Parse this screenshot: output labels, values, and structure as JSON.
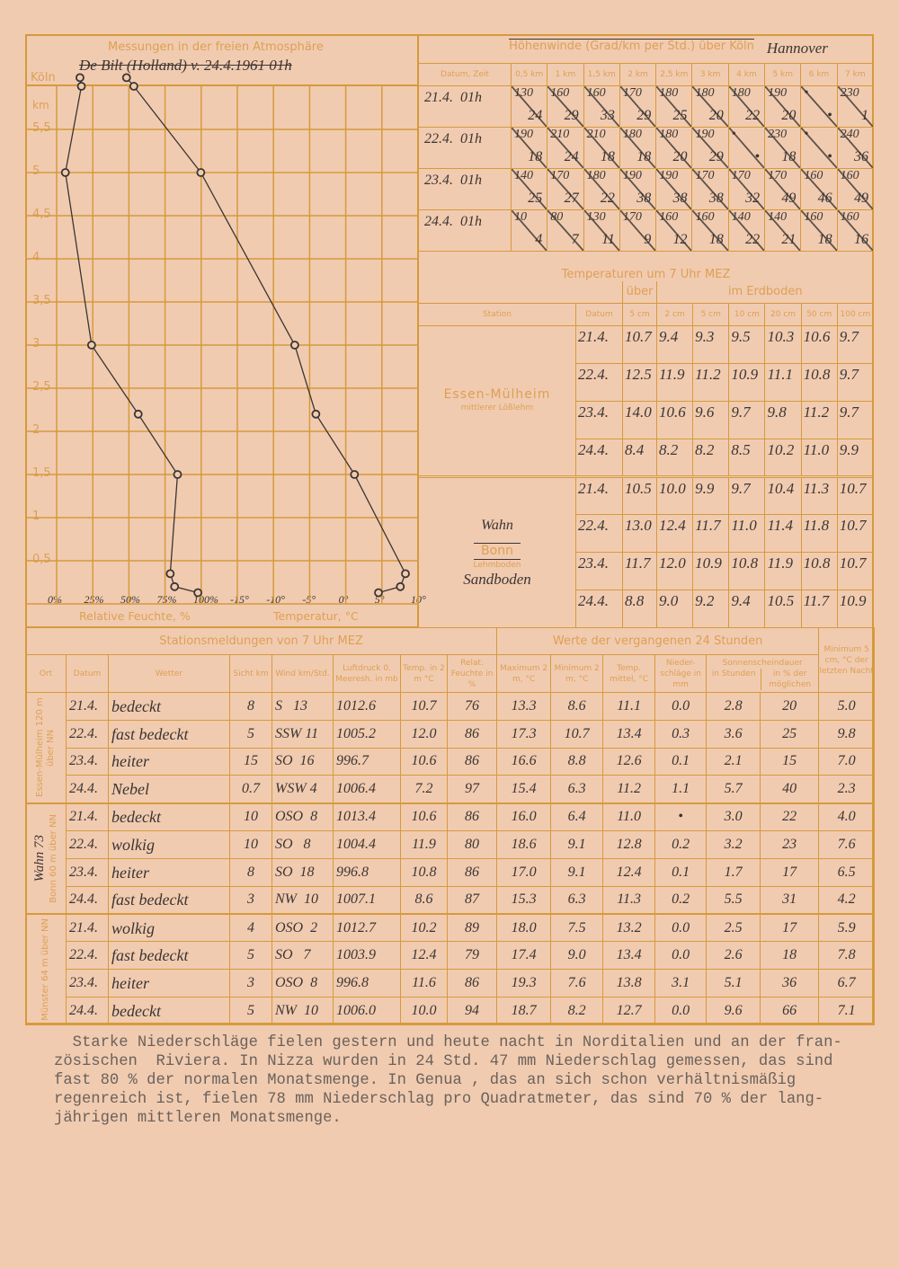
{
  "chart_data": {
    "type": "line",
    "title": "Messungen in der freien Atmosphäre",
    "note": "De Bilt (Holland) v. 24.4.1961   01h",
    "location_label": "Köln",
    "y_unit": "km",
    "yticks": [
      "5,5",
      "5",
      "4,5",
      "4",
      "3,5",
      "3",
      "2,5",
      "2",
      "1,5",
      "1",
      "0,5"
    ],
    "humidity_ticks": [
      "0%",
      "25%",
      "50%",
      "75%",
      "100%"
    ],
    "temp_ticks": [
      "-15°",
      "-10°",
      "-5°",
      "0°",
      "5°",
      "10°"
    ],
    "xlabel_humidity": "Relative Feuchte, %",
    "xlabel_temp": "Temperatur, °C",
    "ylim": [
      0,
      5.75
    ],
    "humidity_xlim": [
      0,
      100
    ],
    "temp_xlim": [
      -15,
      10
    ],
    "grid": true,
    "series": [
      {
        "name": "Relative Feuchte, %",
        "points": [
          [
            16,
            6.1
          ],
          [
            17,
            6.0
          ],
          [
            6,
            5.0
          ],
          [
            24,
            3.0
          ],
          [
            56,
            2.2
          ],
          [
            83,
            1.5
          ],
          [
            78,
            0.35
          ],
          [
            81,
            0.2
          ],
          [
            97,
            0.13
          ]
        ]
      },
      {
        "name": "Temperatur, °C",
        "points": [
          [
            -30.4,
            6.1
          ],
          [
            -29.4,
            6.0
          ],
          [
            -20.2,
            5.0
          ],
          [
            -7.3,
            3.0
          ],
          [
            -4.4,
            2.2
          ],
          [
            0.9,
            1.5
          ],
          [
            7.9,
            0.35
          ],
          [
            7.2,
            0.2
          ],
          [
            4.2,
            0.13
          ]
        ]
      }
    ]
  },
  "winds": {
    "title": "Höhenwinde (Grad/km per Std.) über Köln",
    "handwritten_station": "Hannover",
    "date_header": "Datum, Zeit",
    "levels": [
      "0,5 km",
      "1 km",
      "1,5 km",
      "2 km",
      "2,5 km",
      "3 km",
      "4 km",
      "5 km",
      "6 km",
      "7 km"
    ],
    "rows": [
      {
        "date": "21.4.  01h",
        "cells": [
          [
            "130",
            "24"
          ],
          [
            "160",
            "29"
          ],
          [
            "160",
            "33"
          ],
          [
            "170",
            "29"
          ],
          [
            "180",
            "25"
          ],
          [
            "180",
            "20"
          ],
          [
            "180",
            "22"
          ],
          [
            "190",
            "20"
          ],
          [
            "•",
            "•"
          ],
          [
            "230",
            "1"
          ]
        ]
      },
      {
        "date": "22.4.  01h",
        "cells": [
          [
            "190",
            "18"
          ],
          [
            "210",
            "24"
          ],
          [
            "210",
            "18"
          ],
          [
            "180",
            "18"
          ],
          [
            "180",
            "20"
          ],
          [
            "190",
            "29"
          ],
          [
            "•",
            "•"
          ],
          [
            "230",
            "18"
          ],
          [
            "•",
            "•"
          ],
          [
            "240",
            "36"
          ]
        ]
      },
      {
        "date": "23.4.  01h",
        "cells": [
          [
            "140",
            "25"
          ],
          [
            "170",
            "27"
          ],
          [
            "180",
            "22"
          ],
          [
            "190",
            "38"
          ],
          [
            "190",
            "38"
          ],
          [
            "170",
            "38"
          ],
          [
            "170",
            "32"
          ],
          [
            "170",
            "49"
          ],
          [
            "160",
            "46"
          ],
          [
            "160",
            "49"
          ]
        ]
      },
      {
        "date": "24.4.  01h",
        "cells": [
          [
            "10",
            "4"
          ],
          [
            "80",
            "7"
          ],
          [
            "130",
            "11"
          ],
          [
            "170",
            "9"
          ],
          [
            "160",
            "12"
          ],
          [
            "160",
            "18"
          ],
          [
            "140",
            "22"
          ],
          [
            "140",
            "21"
          ],
          [
            "160",
            "18"
          ],
          [
            "160",
            "16"
          ]
        ]
      }
    ]
  },
  "soil": {
    "title": "Temperaturen um 7 Uhr MEZ",
    "over": "über",
    "in_ground": "im Erdboden",
    "headers": [
      "Station",
      "Datum",
      "5 cm",
      "2 cm",
      "5 cm",
      "10 cm",
      "20 cm",
      "50 cm",
      "100 cm"
    ],
    "stations": [
      {
        "name": "Essen-Mülheim",
        "soil": "mittlerer Lößlehm",
        "rows": [
          [
            "21.4.",
            "10.7",
            "9.4",
            "9.3",
            "9.5",
            "10.3",
            "10.6",
            "9.7"
          ],
          [
            "22.4.",
            "12.5",
            "11.9",
            "11.2",
            "10.9",
            "11.1",
            "10.8",
            "9.7"
          ],
          [
            "23.4.",
            "14.0",
            "10.6",
            "9.6",
            "9.7",
            "9.8",
            "11.2",
            "9.7"
          ],
          [
            "24.4.",
            "8.4",
            "8.2",
            "8.2",
            "8.5",
            "10.2",
            "11.0",
            "9.9"
          ]
        ]
      },
      {
        "name_handwritten": "Wahn",
        "name": "Bonn",
        "soil": "Lehmboden",
        "soil_handwritten": "Sandboden",
        "rows": [
          [
            "21.4.",
            "10.5",
            "10.0",
            "9.9",
            "9.7",
            "10.4",
            "11.3",
            "10.7"
          ],
          [
            "22.4.",
            "13.0",
            "12.4",
            "11.7",
            "11.0",
            "11.4",
            "11.8",
            "10.7"
          ],
          [
            "23.4.",
            "11.7",
            "12.0",
            "10.9",
            "10.8",
            "11.9",
            "10.8",
            "10.7"
          ],
          [
            "24.4.",
            "8.8",
            "9.0",
            "9.2",
            "9.4",
            "10.5",
            "11.7",
            "10.9"
          ]
        ]
      }
    ]
  },
  "stations": {
    "title_left": "Stationsmeldungen von 7 Uhr MEZ",
    "title_right": "Werte der vergangenen 24 Stunden",
    "min_header": "Minimum 5 cm, °C der letzten Nacht",
    "sun_header": "Sonnenscheindauer",
    "headers": [
      "Ort",
      "Datum",
      "Wetter",
      "Sicht km",
      "Wind km/Std.",
      "Luftdruck 0. Meeresh. in mb",
      "Temp. in 2 m °C",
      "Relat. Feuchte in %",
      "Maximum 2 m, °C",
      "Minimum 2 m, °C",
      "Temp. mittel, °C",
      "Nieder-schläge in mm",
      "in Stunden",
      "in % der möglichen"
    ],
    "groups": [
      {
        "place": "Essen-Mülheim 120 m über NN",
        "rows": [
          [
            "21.4.",
            "bedeckt",
            "8",
            "S   13",
            "1012.6",
            "10.7",
            "76",
            "13.3",
            "8.6",
            "11.1",
            "0.0",
            "2.8",
            "20",
            "5.0"
          ],
          [
            "22.4.",
            "fast bedeckt",
            "5",
            "SSW 11",
            "1005.2",
            "12.0",
            "86",
            "17.3",
            "10.7",
            "13.4",
            "0.3",
            "3.6",
            "25",
            "9.8"
          ],
          [
            "23.4.",
            "heiter",
            "15",
            "SO  16",
            "996.7",
            "10.6",
            "86",
            "16.6",
            "8.8",
            "12.6",
            "0.1",
            "2.1",
            "15",
            "7.0"
          ],
          [
            "24.4.",
            "Nebel",
            "0.7",
            "WSW 4",
            "1006.4",
            "7.2",
            "97",
            "15.4",
            "6.3",
            "11.2",
            "1.1",
            "5.7",
            "40",
            "2.3"
          ]
        ]
      },
      {
        "place": "Bonn 60 m über NN",
        "place_handwritten": "Wahn 73",
        "rows": [
          [
            "21.4.",
            "bedeckt",
            "10",
            "OSO  8",
            "1013.4",
            "10.6",
            "86",
            "16.0",
            "6.4",
            "11.0",
            "•",
            "3.0",
            "22",
            "4.0"
          ],
          [
            "22.4.",
            "wolkig",
            "10",
            "SO   8",
            "1004.4",
            "11.9",
            "80",
            "18.6",
            "9.1",
            "12.8",
            "0.2",
            "3.2",
            "23",
            "7.6"
          ],
          [
            "23.4.",
            "heiter",
            "8",
            "SO  18",
            "996.8",
            "10.8",
            "86",
            "17.0",
            "9.1",
            "12.4",
            "0.1",
            "1.7",
            "17",
            "6.5"
          ],
          [
            "24.4.",
            "fast bedeckt",
            "3",
            "NW  10",
            "1007.1",
            "8.6",
            "87",
            "15.3",
            "6.3",
            "11.3",
            "0.2",
            "5.5",
            "31",
            "4.2"
          ]
        ]
      },
      {
        "place": "Münster 64 m über NN",
        "rows": [
          [
            "21.4.",
            "wolkig",
            "4",
            "OSO  2",
            "1012.7",
            "10.2",
            "89",
            "18.0",
            "7.5",
            "13.2",
            "0.0",
            "2.5",
            "17",
            "5.9"
          ],
          [
            "22.4.",
            "fast bedeckt",
            "5",
            "SO   7",
            "1003.9",
            "12.4",
            "79",
            "17.4",
            "9.0",
            "13.4",
            "0.0",
            "2.6",
            "18",
            "7.8"
          ],
          [
            "23.4.",
            "heiter",
            "3",
            "OSO  8",
            "996.8",
            "11.6",
            "86",
            "19.3",
            "7.6",
            "13.8",
            "3.1",
            "5.1",
            "36",
            "6.7"
          ],
          [
            "24.4.",
            "bedeckt",
            "5",
            "NW  10",
            "1006.0",
            "10.0",
            "94",
            "18.7",
            "8.2",
            "12.7",
            "0.0",
            "9.6",
            "66",
            "7.1"
          ]
        ]
      }
    ]
  },
  "report": {
    "lines": [
      "  Starke Niederschläge fielen gestern und heute nacht in Norditalien und an der fran-",
      "zösischen  Riviera. In Nizza wurden in 24 Std. 47 mm Niederschlag gemessen, das sind",
      "fast 80 % der normalen Monatsmenge. In Genua , das an sich schon verhältnismäßig",
      "regenreich ist, fielen 78 mm Niederschlag pro Quadratmeter, das sind 70 % der lang-",
      "jährigen mittleren Monatsmenge."
    ]
  },
  "colors": {
    "paper": "#f1cbb0",
    "print": "#d69a3c",
    "ink": "#3b3532"
  }
}
